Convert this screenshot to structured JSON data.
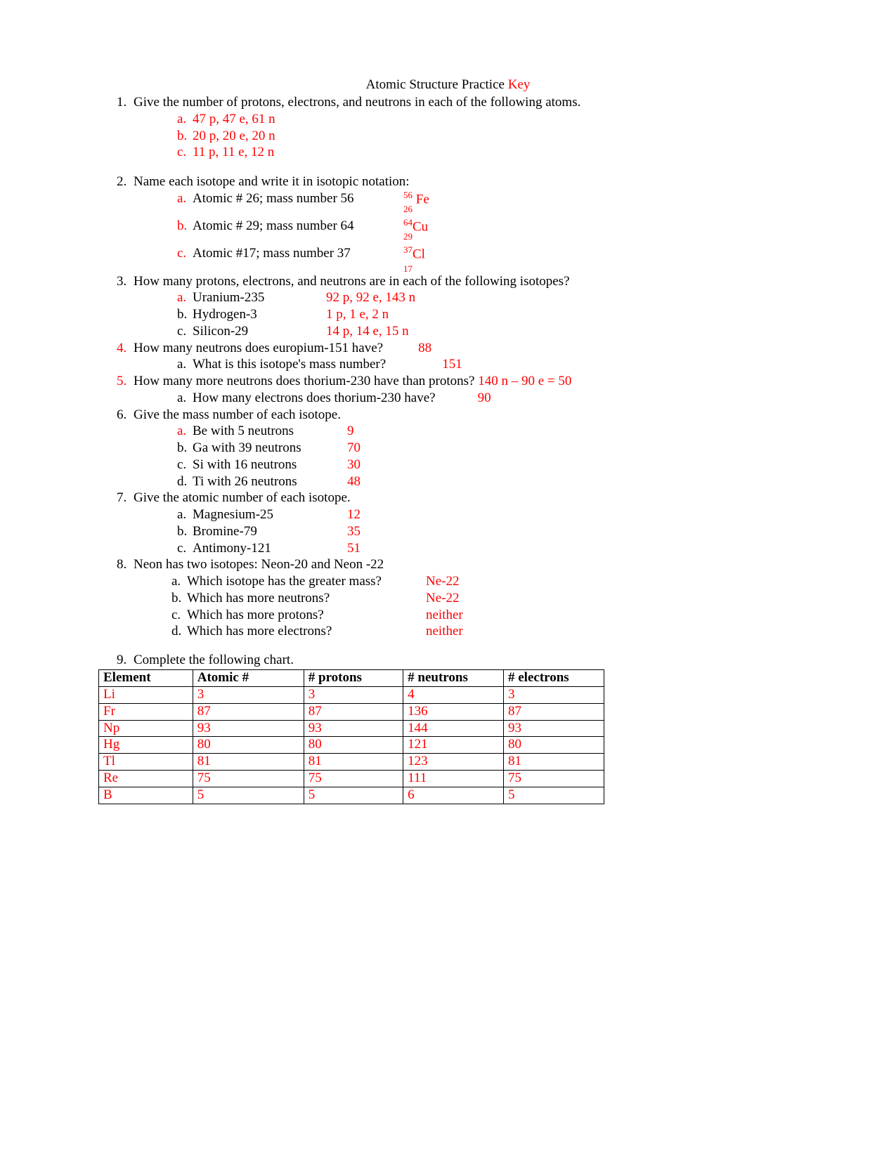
{
  "title_main": "Atomic Structure Practice ",
  "title_key": "Key",
  "q1": {
    "num": "1.",
    "text": "Give the number of protons, electrons, and neutrons in each of the following atoms.",
    "items": [
      {
        "let": "a.",
        "ans": "47 p, 47 e, 61 n"
      },
      {
        "let": "b.",
        "ans": "20 p, 20 e, 20 n"
      },
      {
        "let": "c.",
        "ans": "11 p, 11 e, 12 n"
      }
    ]
  },
  "q2": {
    "num": "2.",
    "text": "Name each isotope and write it in isotopic notation:",
    "items": [
      {
        "let": "a.",
        "txt": "Atomic # 26; mass number 56",
        "mass": "56",
        "sym": " Fe",
        "atomic": "26"
      },
      {
        "let": "b.",
        "txt": "Atomic # 29; mass number 64",
        "mass": "64",
        "sym": "Cu",
        "atomic": "29"
      },
      {
        "let": "c.",
        "txt": "Atomic #17; mass number 37",
        "mass": "37",
        "sym": "Cl",
        "atomic": "17"
      }
    ]
  },
  "q3": {
    "num": "3.",
    "text": "How many protons, electrons, and neutrons are in each of the following isotopes?",
    "items": [
      {
        "let": "a.",
        "name": "Uranium-235",
        "ans": "92 p, 92 e, 143 n"
      },
      {
        "let": "b.",
        "name": "Hydrogen-3",
        "ans": "1 p, 1 e, 2 n"
      },
      {
        "let": "c.",
        "name": "Silicon-29",
        "ans": "14 p, 14 e, 15 n"
      }
    ]
  },
  "q4": {
    "num": "4.",
    "text": "How many neutrons does europium-151 have?",
    "ans": "88",
    "sub_let": "a.",
    "sub_text": "What is this isotope's mass number?",
    "sub_ans": "151"
  },
  "q5": {
    "num": "5.",
    "text": "How many more neutrons does thorium-230 have than protons? ",
    "ans": "140 n – 90 e = 50",
    "sub_let": "a.",
    "sub_text": "How many electrons does thorium-230 have?",
    "sub_ans": "90"
  },
  "q6": {
    "num": "6.",
    "text": "Give the mass number of each isotope.",
    "items": [
      {
        "let": "a.",
        "txt": "Be with 5 neutrons",
        "ans": "9"
      },
      {
        "let": "b.",
        "txt": "Ga with 39 neutrons",
        "ans": "70"
      },
      {
        "let": "c.",
        "txt": "Si with 16 neutrons",
        "ans": "30"
      },
      {
        "let": "d.",
        "txt": "Ti with 26 neutrons",
        "ans": "48"
      }
    ]
  },
  "q7": {
    "num": "7.",
    "text": "Give the atomic number of each isotope.",
    "items": [
      {
        "let": "a.",
        "txt": "Magnesium-25",
        "ans": "12"
      },
      {
        "let": "b.",
        "txt": "Bromine-79",
        "ans": "35"
      },
      {
        "let": "c.",
        "txt": "Antimony-121",
        "ans": "51"
      }
    ]
  },
  "q8": {
    "num": "8.",
    "text": "Neon has two isotopes:  Neon-20 and Neon -22",
    "items": [
      {
        "let": "a.",
        "txt": "Which isotope has the greater mass?",
        "ans": "Ne-22"
      },
      {
        "let": "b.",
        "txt": "Which has more neutrons?",
        "ans": "Ne-22"
      },
      {
        "let": "c.",
        "txt": " Which has more protons?",
        "ans": "neither"
      },
      {
        "let": "d.",
        "txt": "Which has more electrons?",
        "ans": "neither"
      }
    ]
  },
  "q9": {
    "num": "9.",
    "text": "Complete the following chart.",
    "columns": [
      "Element",
      "Atomic #",
      "# protons",
      "# neutrons",
      "# electrons"
    ],
    "rows": [
      [
        "Li",
        "3",
        "3",
        "4",
        "3"
      ],
      [
        "Fr",
        "87",
        "87",
        "136",
        "87"
      ],
      [
        "Np",
        "93",
        "93",
        "144",
        "93"
      ],
      [
        "Hg",
        "80",
        "80",
        "121",
        "80"
      ],
      [
        "Tl",
        "81",
        "81",
        "123",
        "81"
      ],
      [
        "Re",
        "75",
        "75",
        "111",
        "75"
      ],
      [
        "B",
        "5",
        "5",
        "6",
        "5"
      ]
    ]
  }
}
